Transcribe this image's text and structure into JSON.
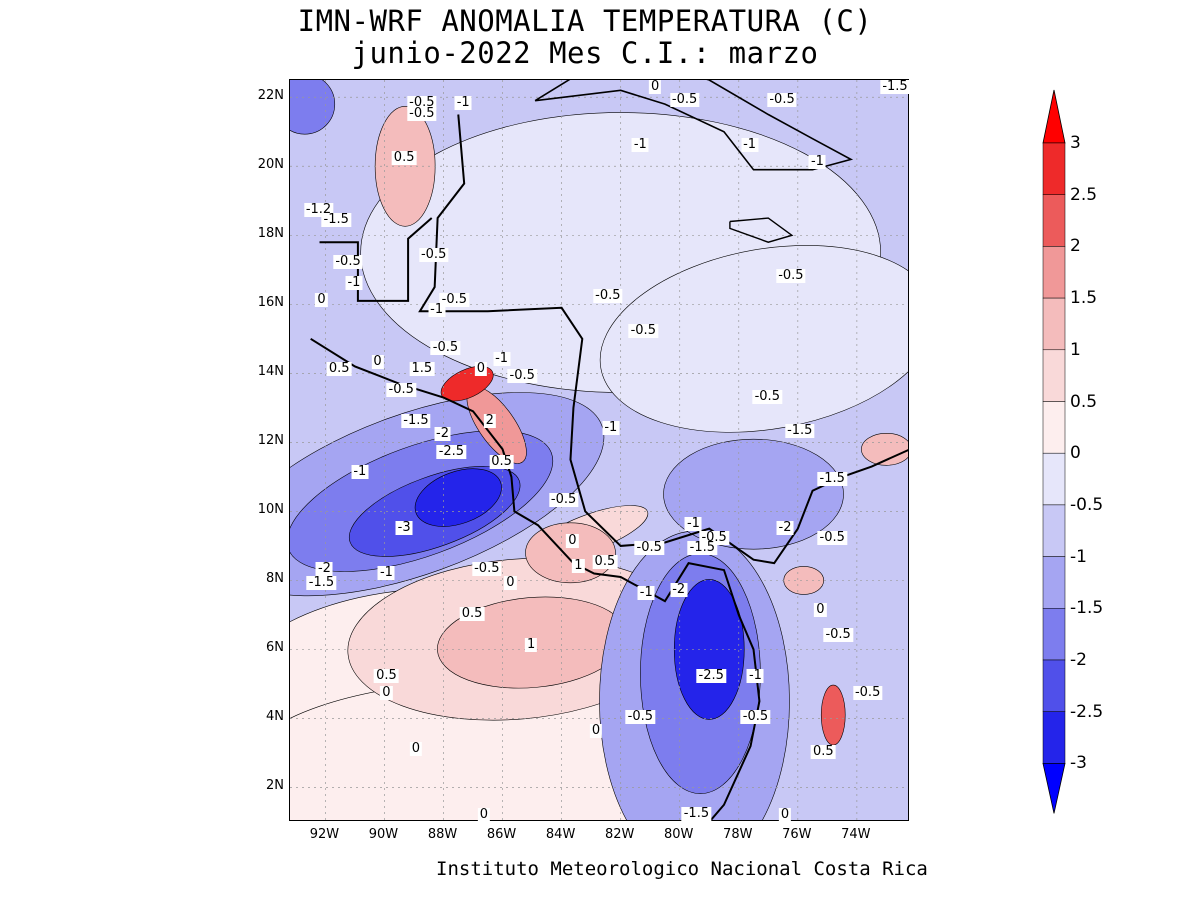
{
  "title": {
    "line1": "IMN-WRF  ANOMALIA TEMPERATURA (C)",
    "line2": "junio-2022 Mes C.I.: marzo"
  },
  "credit": "Instituto Meteorologico Nacional Costa Rica",
  "map": {
    "lon_range": [
      -93.2,
      -72.2
    ],
    "lat_range": [
      1.0,
      22.5
    ],
    "grid": true,
    "lat_labels": [
      "2N",
      "4N",
      "6N",
      "8N",
      "10N",
      "12N",
      "14N",
      "16N",
      "18N",
      "20N",
      "22N"
    ],
    "lat_values": [
      2,
      4,
      6,
      8,
      10,
      12,
      14,
      16,
      18,
      20,
      22
    ],
    "lon_labels": [
      "92W",
      "90W",
      "88W",
      "86W",
      "84W",
      "82W",
      "80W",
      "78W",
      "76W",
      "74W"
    ],
    "lon_values": [
      -92,
      -90,
      -88,
      -86,
      -84,
      -82,
      -80,
      -78,
      -76,
      -74
    ],
    "contour_labels": [
      {
        "text": "-0.5",
        "lon": -88.7,
        "lat": 21.8
      },
      {
        "text": "-1",
        "lon": -87.3,
        "lat": 21.8
      },
      {
        "text": "-0.5",
        "lon": -88.7,
        "lat": 21.5
      },
      {
        "text": "0.5",
        "lon": -89.3,
        "lat": 20.2
      },
      {
        "text": "-1",
        "lon": -81.3,
        "lat": 20.6
      },
      {
        "text": "-0.5",
        "lon": -79.8,
        "lat": 21.9
      },
      {
        "text": "0",
        "lon": -80.8,
        "lat": 22.3
      },
      {
        "text": "-0.5",
        "lon": -76.5,
        "lat": 21.9
      },
      {
        "text": "-1",
        "lon": -77.6,
        "lat": 20.6
      },
      {
        "text": "-1",
        "lon": -75.3,
        "lat": 20.1
      },
      {
        "text": "-1.5",
        "lon": -72.6,
        "lat": 22.5
      },
      {
        "text": "-1.2",
        "lon": -92.2,
        "lat": 18.7
      },
      {
        "text": "-1.5",
        "lon": -91.6,
        "lat": 18.4
      },
      {
        "text": "-0.5",
        "lon": -91.2,
        "lat": 17.2
      },
      {
        "text": "-1",
        "lon": -91.0,
        "lat": 16.6
      },
      {
        "text": "-0.5",
        "lon": -88.3,
        "lat": 17.4
      },
      {
        "text": "0",
        "lon": -92.1,
        "lat": 16.1
      },
      {
        "text": "-0.5",
        "lon": -87.6,
        "lat": 16.1
      },
      {
        "text": "-1",
        "lon": -88.2,
        "lat": 15.8
      },
      {
        "text": "-0.5",
        "lon": -82.4,
        "lat": 16.2
      },
      {
        "text": "-0.5",
        "lon": -81.2,
        "lat": 15.2
      },
      {
        "text": "-0.5",
        "lon": -76.2,
        "lat": 16.8
      },
      {
        "text": "-0.5",
        "lon": -87.9,
        "lat": 14.7
      },
      {
        "text": "-1",
        "lon": -86.0,
        "lat": 14.4
      },
      {
        "text": "0.5",
        "lon": -91.5,
        "lat": 14.1
      },
      {
        "text": "0",
        "lon": -90.2,
        "lat": 14.3
      },
      {
        "text": "1.5",
        "lon": -88.7,
        "lat": 14.1
      },
      {
        "text": "0",
        "lon": -86.7,
        "lat": 14.1
      },
      {
        "text": "-0.5",
        "lon": -85.3,
        "lat": 13.9
      },
      {
        "text": "-0.5",
        "lon": -89.4,
        "lat": 13.5
      },
      {
        "text": "-0.5",
        "lon": -77.0,
        "lat": 13.3
      },
      {
        "text": "-1.5",
        "lon": -88.9,
        "lat": 12.6
      },
      {
        "text": "2",
        "lon": -86.4,
        "lat": 12.6
      },
      {
        "text": "-1",
        "lon": -82.3,
        "lat": 12.4
      },
      {
        "text": "-1.5",
        "lon": -75.9,
        "lat": 12.3
      },
      {
        "text": "-2",
        "lon": -88.0,
        "lat": 12.2
      },
      {
        "text": "-2.5",
        "lon": -87.7,
        "lat": 11.7
      },
      {
        "text": "0.5",
        "lon": -86.0,
        "lat": 11.4
      },
      {
        "text": "-1",
        "lon": -90.8,
        "lat": 11.1
      },
      {
        "text": "-1.5",
        "lon": -74.8,
        "lat": 10.9
      },
      {
        "text": "-0.5",
        "lon": -83.9,
        "lat": 10.3
      },
      {
        "text": "-3",
        "lon": -89.3,
        "lat": 9.5
      },
      {
        "text": "-1",
        "lon": -79.5,
        "lat": 9.6
      },
      {
        "text": "-2",
        "lon": -76.4,
        "lat": 9.5
      },
      {
        "text": "0",
        "lon": -83.6,
        "lat": 9.1
      },
      {
        "text": "-0.5",
        "lon": -78.8,
        "lat": 9.2
      },
      {
        "text": "-0.5",
        "lon": -81.0,
        "lat": 8.9
      },
      {
        "text": "-1.5",
        "lon": -79.2,
        "lat": 8.9
      },
      {
        "text": "-0.5",
        "lon": -74.8,
        "lat": 9.2
      },
      {
        "text": "-2",
        "lon": -92.0,
        "lat": 8.3
      },
      {
        "text": "-1",
        "lon": -89.9,
        "lat": 8.2
      },
      {
        "text": "-0.5",
        "lon": -86.5,
        "lat": 8.3
      },
      {
        "text": "1",
        "lon": -83.4,
        "lat": 8.4
      },
      {
        "text": "0.5",
        "lon": -82.5,
        "lat": 8.5
      },
      {
        "text": "-1.5",
        "lon": -92.1,
        "lat": 7.9
      },
      {
        "text": "0",
        "lon": -85.7,
        "lat": 7.9
      },
      {
        "text": "-1",
        "lon": -81.1,
        "lat": 7.6
      },
      {
        "text": "-2",
        "lon": -80.0,
        "lat": 7.7
      },
      {
        "text": "0",
        "lon": -75.2,
        "lat": 7.1
      },
      {
        "text": "0.5",
        "lon": -87.0,
        "lat": 7.0
      },
      {
        "text": "-0.5",
        "lon": -74.6,
        "lat": 6.4
      },
      {
        "text": "1",
        "lon": -85.0,
        "lat": 6.1
      },
      {
        "text": "0.5",
        "lon": -89.9,
        "lat": 5.2
      },
      {
        "text": "-2.5",
        "lon": -78.9,
        "lat": 5.2
      },
      {
        "text": "-1",
        "lon": -77.4,
        "lat": 5.2
      },
      {
        "text": "0",
        "lon": -89.9,
        "lat": 4.7
      },
      {
        "text": "-0.5",
        "lon": -73.6,
        "lat": 4.7
      },
      {
        "text": "-0.5",
        "lon": -81.3,
        "lat": 4.0
      },
      {
        "text": "-0.5",
        "lon": -77.4,
        "lat": 4.0
      },
      {
        "text": "0",
        "lon": -82.8,
        "lat": 3.6
      },
      {
        "text": "0",
        "lon": -88.9,
        "lat": 3.1
      },
      {
        "text": "0.5",
        "lon": -75.1,
        "lat": 3.0
      },
      {
        "text": "-1.5",
        "lon": -79.4,
        "lat": 1.2
      },
      {
        "text": "0",
        "lon": -76.4,
        "lat": 1.0
      },
      {
        "text": "0",
        "lon": -86.6,
        "lat": 0.1
      }
    ]
  },
  "colorbar": {
    "levels": [
      "3",
      "2.5",
      "2",
      "1.5",
      "1",
      "0.5",
      "0",
      "-0.5",
      "-1",
      "-1.5",
      "-2",
      "-2.5",
      "-3"
    ],
    "colors_top_to_bottom": [
      "#ff0000",
      "#ee2a2a",
      "#ec5b5b",
      "#f09898",
      "#f4bcbc",
      "#f9d9d9",
      "#fdeeee",
      "#e6e6fa",
      "#c8c8f5",
      "#a5a5f2",
      "#7d7dee",
      "#5050ea",
      "#2424ea",
      "#0000ff"
    ]
  },
  "palette": {
    "land_border": "#000000",
    "grid": "#999999"
  }
}
